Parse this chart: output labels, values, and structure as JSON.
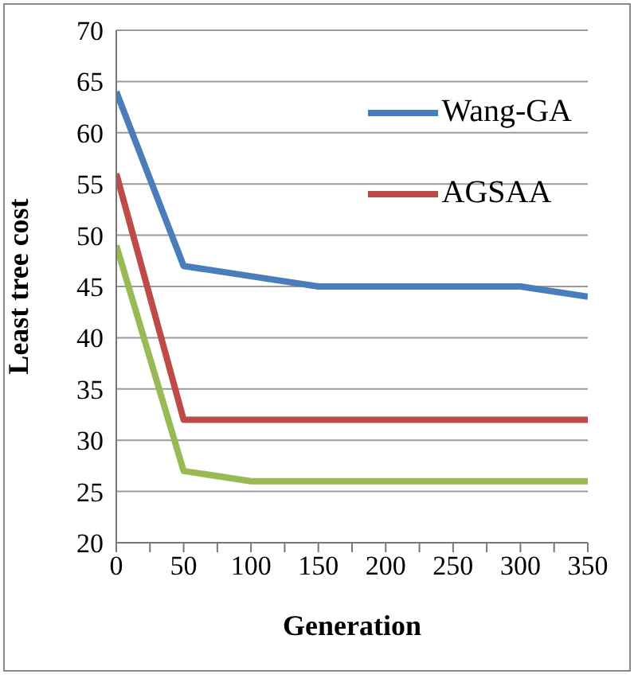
{
  "chart_data": {
    "type": "line",
    "xlabel": "Generation",
    "ylabel": "Least tree cost",
    "x": [
      0,
      50,
      100,
      150,
      200,
      250,
      300,
      350
    ],
    "series": [
      {
        "name": "Wang-GA",
        "color": "#4a7ebb",
        "values": [
          64,
          47,
          46,
          45,
          45,
          45,
          45,
          44
        ]
      },
      {
        "name": "AGSAA",
        "color": "#be4b48",
        "values": [
          56,
          32,
          32,
          32,
          32,
          32,
          32,
          32
        ]
      },
      {
        "color": "#98b954",
        "values": [
          49,
          27,
          26,
          26,
          26,
          26,
          26,
          26
        ]
      }
    ],
    "xlim": [
      0,
      350
    ],
    "xticks": [
      0,
      {
        "value": 25,
        "label": null
      },
      50,
      {
        "value": 75,
        "label": null
      },
      100,
      {
        "value": 125,
        "label": null
      },
      150,
      {
        "value": 175,
        "label": null
      },
      200,
      {
        "value": 225,
        "label": null
      },
      250,
      {
        "value": 275,
        "label": null
      },
      300,
      {
        "value": 325,
        "label": null
      },
      350
    ],
    "ylim": [
      20,
      70
    ],
    "yticks": [
      20,
      25,
      30,
      35,
      40,
      45,
      50,
      55,
      60,
      65,
      70
    ],
    "grid": "y",
    "legend": "top right",
    "marker": "none",
    "line_style": "solid"
  }
}
